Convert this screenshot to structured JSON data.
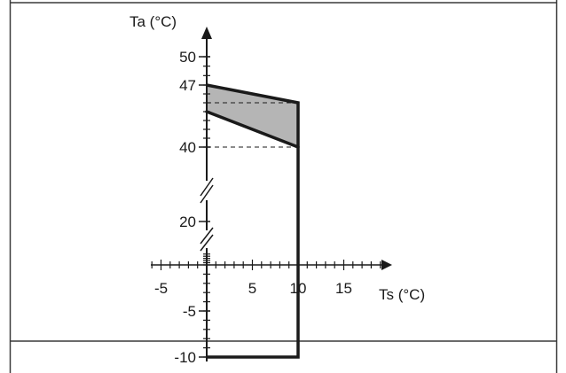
{
  "chart_data": {
    "type": "area",
    "title": "",
    "xlabel": "Ts (°C)",
    "ylabel": "Ta (°C)",
    "x_ticks": [
      {
        "value": -5,
        "label": "-5"
      },
      {
        "value": 5,
        "label": "5"
      },
      {
        "value": 10,
        "label": "10"
      },
      {
        "value": 15,
        "label": "15"
      }
    ],
    "y_ticks": [
      {
        "value": 50,
        "label": "50"
      },
      {
        "value": 47,
        "label": "47"
      },
      {
        "value": 40,
        "label": "40"
      },
      {
        "value": 20,
        "label": "20"
      },
      {
        "value": -5,
        "label": "-5"
      },
      {
        "value": -10,
        "label": "-10"
      }
    ],
    "y_axis_break": true,
    "boundary": [
      [
        0,
        47
      ],
      [
        10,
        45
      ],
      [
        10,
        -10
      ],
      [
        0,
        -10
      ]
    ],
    "shaded_region": [
      [
        0,
        47
      ],
      [
        10,
        45
      ],
      [
        10,
        40
      ],
      [
        0,
        44
      ]
    ],
    "reference_lines": [
      {
        "y": 45,
        "x_from": 0,
        "x_to": 10
      },
      {
        "y": 40,
        "x_from": 0,
        "x_to": 10
      }
    ],
    "colors": {
      "shade": "#b5b5b5",
      "line": "#1a1a1a",
      "frame": "#3a3a3a"
    },
    "grid": false,
    "legend": "none"
  }
}
